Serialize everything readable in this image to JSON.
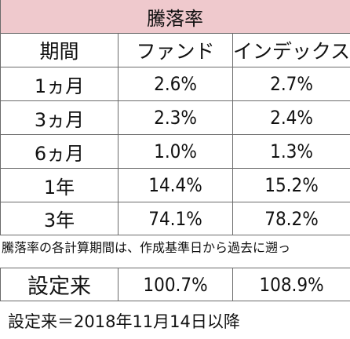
{
  "table": {
    "title": "騰落率",
    "headers": {
      "period": "期間",
      "fund": "ファンド",
      "index": "インデックス"
    },
    "rows": [
      {
        "period": "1ヵ月",
        "fund": "2.6%",
        "index": "2.7%"
      },
      {
        "period": "3ヵ月",
        "fund": "2.3%",
        "index": "2.4%"
      },
      {
        "period": "6ヵ月",
        "fund": "1.0%",
        "index": "1.3%"
      },
      {
        "period": "1年",
        "fund": "14.4%",
        "index": "15.2%"
      },
      {
        "period": "3年",
        "fund": "74.1%",
        "index": "78.2%"
      }
    ]
  },
  "note": "騰落率の各計算期間は、作成基準日から過去に遡っ",
  "since_inception": {
    "label": "設定来",
    "fund": "100.7%",
    "index": "108.9%"
  },
  "footnote": "設定来＝2018年11月14日以降",
  "colors": {
    "title_background": "#efc9cd",
    "grid_lines": "#6b6b6b"
  }
}
